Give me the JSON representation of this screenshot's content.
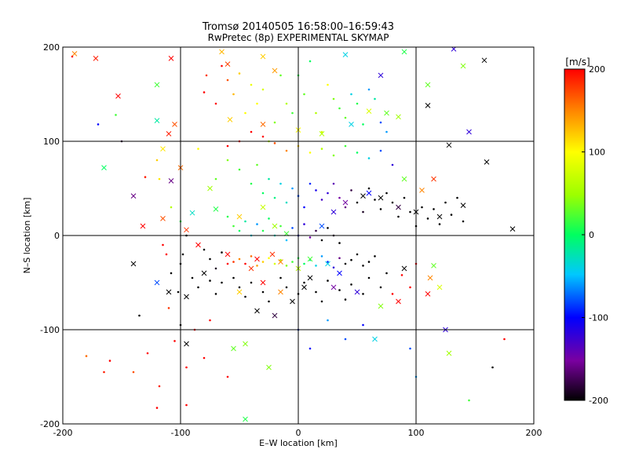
{
  "chart_data": {
    "type": "scatter",
    "title": "Tromsø 20140505 16:58:00–16:59:43",
    "subtitle": "RwPretec (8p) EXPERIMENTAL SKYMAP",
    "xlabel": "E–W location [km]",
    "ylabel": "N–S location [km]",
    "xlim": [
      -200,
      200
    ],
    "ylim": [
      -200,
      200
    ],
    "xticks": [
      "-200",
      "-100",
      "0",
      "100",
      "200"
    ],
    "yticks": [
      "-200",
      "-100",
      "0",
      "100",
      "200"
    ],
    "grid": true,
    "colorbar": {
      "unit": "[m/s]",
      "range": [
        -200,
        200
      ],
      "ticks": [
        "-200",
        "-100",
        "0",
        "100",
        "200"
      ]
    },
    "markers": [
      "x",
      "dot"
    ],
    "points_x": [
      [
        -190,
        193,
        150
      ],
      [
        -172,
        188,
        190
      ],
      [
        -153,
        148,
        200
      ],
      [
        -120,
        160,
        20
      ],
      [
        -108,
        188,
        200
      ],
      [
        -65,
        195,
        130
      ],
      [
        -60,
        182,
        175
      ],
      [
        -30,
        190,
        120
      ],
      [
        -20,
        175,
        140
      ],
      [
        40,
        192,
        -40
      ],
      [
        70,
        170,
        -120
      ],
      [
        90,
        195,
        10
      ],
      [
        110,
        160,
        30
      ],
      [
        132,
        198,
        -120
      ],
      [
        140,
        180,
        40
      ],
      [
        158,
        186,
        -200
      ],
      [
        -165,
        72,
        0
      ],
      [
        -120,
        122,
        -20
      ],
      [
        -105,
        118,
        170
      ],
      [
        -110,
        108,
        190
      ],
      [
        -115,
        92,
        110
      ],
      [
        -58,
        123,
        120
      ],
      [
        -30,
        118,
        160
      ],
      [
        0,
        112,
        100
      ],
      [
        20,
        108,
        60
      ],
      [
        45,
        118,
        -40
      ],
      [
        60,
        132,
        80
      ],
      [
        75,
        130,
        30
      ],
      [
        85,
        126,
        50
      ],
      [
        110,
        138,
        -200
      ],
      [
        -100,
        72,
        160
      ],
      [
        -75,
        50,
        50
      ],
      [
        -70,
        28,
        10
      ],
      [
        -90,
        24,
        -30
      ],
      [
        -108,
        58,
        -160
      ],
      [
        -140,
        42,
        -160
      ],
      [
        -132,
        10,
        200
      ],
      [
        -115,
        18,
        170
      ],
      [
        -95,
        6,
        180
      ],
      [
        -85,
        -10,
        200
      ],
      [
        -50,
        20,
        120
      ],
      [
        -30,
        30,
        70
      ],
      [
        -20,
        10,
        50
      ],
      [
        -10,
        2,
        20
      ],
      [
        -22,
        -20,
        180
      ],
      [
        -35,
        -25,
        200
      ],
      [
        -40,
        -35,
        180
      ],
      [
        -15,
        -28,
        150
      ],
      [
        0,
        -35,
        60
      ],
      [
        10,
        -25,
        20
      ],
      [
        25,
        -30,
        -40
      ],
      [
        35,
        -40,
        -100
      ],
      [
        20,
        10,
        -80
      ],
      [
        30,
        25,
        -120
      ],
      [
        40,
        35,
        -150
      ],
      [
        55,
        42,
        -200
      ],
      [
        70,
        40,
        -200
      ],
      [
        85,
        30,
        -180
      ],
      [
        100,
        25,
        -200
      ],
      [
        120,
        20,
        -200
      ],
      [
        140,
        32,
        -200
      ],
      [
        182,
        7,
        -200
      ],
      [
        160,
        78,
        -200
      ],
      [
        128,
        96,
        -200
      ],
      [
        145,
        110,
        -120
      ],
      [
        115,
        60,
        180
      ],
      [
        105,
        48,
        150
      ],
      [
        90,
        60,
        30
      ],
      [
        60,
        45,
        -100
      ],
      [
        -60,
        -20,
        200
      ],
      [
        -80,
        -40,
        -200
      ],
      [
        -95,
        -65,
        -200
      ],
      [
        -110,
        -60,
        -200
      ],
      [
        -120,
        -50,
        -80
      ],
      [
        -140,
        -30,
        -200
      ],
      [
        -50,
        -60,
        120
      ],
      [
        -35,
        -80,
        -200
      ],
      [
        -20,
        -85,
        -180
      ],
      [
        -5,
        -70,
        -200
      ],
      [
        10,
        -45,
        -200
      ],
      [
        30,
        -55,
        -150
      ],
      [
        50,
        -60,
        -120
      ],
      [
        70,
        -75,
        40
      ],
      [
        85,
        -70,
        200
      ],
      [
        110,
        -62,
        200
      ],
      [
        112,
        -45,
        150
      ],
      [
        115,
        -32,
        30
      ],
      [
        120,
        -55,
        80
      ],
      [
        90,
        -35,
        -200
      ],
      [
        -55,
        -120,
        30
      ],
      [
        -45,
        -115,
        40
      ],
      [
        -25,
        -140,
        40
      ],
      [
        -45,
        -195,
        10
      ],
      [
        65,
        -110,
        -40
      ],
      [
        125,
        -100,
        -120
      ],
      [
        128,
        -125,
        50
      ],
      [
        -95,
        -115,
        -200
      ],
      [
        -30,
        -50,
        200
      ],
      [
        -15,
        -60,
        150
      ],
      [
        5,
        -55,
        -200
      ]
    ],
    "points_dot": [
      [
        -192,
        190,
        200
      ],
      [
        -180,
        -128,
        160
      ],
      [
        -170,
        118,
        -100
      ],
      [
        -165,
        -145,
        190
      ],
      [
        -160,
        -133,
        200
      ],
      [
        -155,
        128,
        20
      ],
      [
        -150,
        100,
        -180
      ],
      [
        -140,
        -145,
        170
      ],
      [
        -135,
        -85,
        -200
      ],
      [
        -128,
        -125,
        200
      ],
      [
        -120,
        -183,
        200
      ],
      [
        -118,
        -160,
        190
      ],
      [
        -110,
        -77,
        180
      ],
      [
        -100,
        -95,
        -200
      ],
      [
        -95,
        -180,
        200
      ],
      [
        -88,
        -100,
        200
      ],
      [
        -130,
        62,
        190
      ],
      [
        -120,
        80,
        120
      ],
      [
        -118,
        60,
        110
      ],
      [
        -108,
        30,
        60
      ],
      [
        -100,
        15,
        10
      ],
      [
        -95,
        0,
        -200
      ],
      [
        -85,
        92,
        100
      ],
      [
        -80,
        152,
        200
      ],
      [
        -78,
        170,
        180
      ],
      [
        -70,
        140,
        200
      ],
      [
        -65,
        180,
        200
      ],
      [
        -60,
        165,
        170
      ],
      [
        -55,
        150,
        130
      ],
      [
        -50,
        172,
        120
      ],
      [
        -45,
        130,
        100
      ],
      [
        -40,
        160,
        90
      ],
      [
        -35,
        140,
        100
      ],
      [
        -30,
        155,
        80
      ],
      [
        -25,
        100,
        60
      ],
      [
        -20,
        120,
        40
      ],
      [
        -15,
        170,
        30
      ],
      [
        -10,
        140,
        60
      ],
      [
        -5,
        130,
        20
      ],
      [
        0,
        170,
        10
      ],
      [
        5,
        150,
        30
      ],
      [
        10,
        185,
        0
      ],
      [
        15,
        130,
        60
      ],
      [
        20,
        110,
        80
      ],
      [
        25,
        160,
        100
      ],
      [
        30,
        145,
        40
      ],
      [
        35,
        135,
        20
      ],
      [
        40,
        125,
        30
      ],
      [
        45,
        150,
        -40
      ],
      [
        50,
        140,
        10
      ],
      [
        55,
        118,
        0
      ],
      [
        60,
        155,
        -60
      ],
      [
        65,
        145,
        -20
      ],
      [
        70,
        120,
        -80
      ],
      [
        75,
        110,
        -60
      ],
      [
        -70,
        60,
        30
      ],
      [
        -60,
        80,
        40
      ],
      [
        -50,
        70,
        20
      ],
      [
        -40,
        55,
        10
      ],
      [
        -35,
        75,
        30
      ],
      [
        -30,
        45,
        0
      ],
      [
        -25,
        60,
        -20
      ],
      [
        -20,
        40,
        -10
      ],
      [
        -15,
        55,
        -40
      ],
      [
        -10,
        35,
        -30
      ],
      [
        -5,
        50,
        -60
      ],
      [
        0,
        42,
        -80
      ],
      [
        5,
        30,
        -100
      ],
      [
        10,
        55,
        -90
      ],
      [
        15,
        48,
        -110
      ],
      [
        20,
        38,
        -130
      ],
      [
        25,
        45,
        -120
      ],
      [
        30,
        55,
        -140
      ],
      [
        35,
        40,
        -150
      ],
      [
        40,
        30,
        -160
      ],
      [
        45,
        48,
        -180
      ],
      [
        50,
        35,
        -200
      ],
      [
        55,
        25,
        -190
      ],
      [
        60,
        50,
        -200
      ],
      [
        65,
        38,
        -200
      ],
      [
        70,
        28,
        -200
      ],
      [
        75,
        45,
        -200
      ],
      [
        80,
        35,
        -200
      ],
      [
        85,
        20,
        -200
      ],
      [
        90,
        40,
        -200
      ],
      [
        95,
        25,
        -200
      ],
      [
        100,
        10,
        -200
      ],
      [
        105,
        30,
        -200
      ],
      [
        110,
        18,
        -200
      ],
      [
        115,
        28,
        -200
      ],
      [
        120,
        12,
        -200
      ],
      [
        125,
        35,
        -200
      ],
      [
        130,
        22,
        -200
      ],
      [
        135,
        40,
        -200
      ],
      [
        140,
        15,
        -200
      ],
      [
        -60,
        20,
        10
      ],
      [
        -55,
        10,
        20
      ],
      [
        -50,
        5,
        0
      ],
      [
        -45,
        15,
        -20
      ],
      [
        -40,
        0,
        -40
      ],
      [
        -35,
        12,
        -60
      ],
      [
        -30,
        5,
        10
      ],
      [
        -25,
        18,
        0
      ],
      [
        -20,
        0,
        -30
      ],
      [
        -15,
        10,
        20
      ],
      [
        -10,
        -5,
        -50
      ],
      [
        -5,
        8,
        -80
      ],
      [
        0,
        0,
        -100
      ],
      [
        5,
        12,
        -120
      ],
      [
        10,
        -2,
        -150
      ],
      [
        15,
        5,
        -180
      ],
      [
        20,
        -5,
        -200
      ],
      [
        25,
        8,
        -200
      ],
      [
        30,
        0,
        -190
      ],
      [
        35,
        -8,
        -200
      ],
      [
        -80,
        -15,
        -200
      ],
      [
        -75,
        -25,
        -200
      ],
      [
        -70,
        -35,
        -190
      ],
      [
        -65,
        -18,
        -200
      ],
      [
        -60,
        -30,
        200
      ],
      [
        -55,
        -28,
        180
      ],
      [
        -50,
        -25,
        150
      ],
      [
        -45,
        -30,
        200
      ],
      [
        -40,
        -22,
        160
      ],
      [
        -35,
        -32,
        140
      ],
      [
        -30,
        -28,
        120
      ],
      [
        -25,
        -24,
        100
      ],
      [
        -20,
        -30,
        80
      ],
      [
        -15,
        -26,
        60
      ],
      [
        -10,
        -32,
        40
      ],
      [
        -5,
        -28,
        20
      ],
      [
        0,
        -24,
        10
      ],
      [
        5,
        -30,
        0
      ],
      [
        10,
        -26,
        -20
      ],
      [
        15,
        -32,
        -40
      ],
      [
        20,
        -22,
        -60
      ],
      [
        25,
        -28,
        -90
      ],
      [
        30,
        -34,
        -120
      ],
      [
        35,
        -24,
        -160
      ],
      [
        40,
        -30,
        -200
      ],
      [
        45,
        -26,
        -200
      ],
      [
        50,
        -20,
        -200
      ],
      [
        55,
        -32,
        -200
      ],
      [
        60,
        -28,
        -200
      ],
      [
        65,
        -22,
        -200
      ],
      [
        -100,
        -30,
        -200
      ],
      [
        -90,
        -45,
        -200
      ],
      [
        -85,
        -55,
        -200
      ],
      [
        -75,
        -48,
        -200
      ],
      [
        -70,
        -62,
        -200
      ],
      [
        -65,
        -50,
        -200
      ],
      [
        -55,
        -45,
        -200
      ],
      [
        -50,
        -55,
        -200
      ],
      [
        -45,
        -65,
        -200
      ],
      [
        -40,
        -50,
        -200
      ],
      [
        -30,
        -60,
        -200
      ],
      [
        -25,
        -70,
        -200
      ],
      [
        -15,
        -45,
        -200
      ],
      [
        -10,
        -55,
        -200
      ],
      [
        0,
        -62,
        -200
      ],
      [
        5,
        -50,
        -200
      ],
      [
        15,
        -60,
        -200
      ],
      [
        20,
        -70,
        -200
      ],
      [
        25,
        -48,
        -200
      ],
      [
        35,
        -58,
        -200
      ],
      [
        40,
        -68,
        -200
      ],
      [
        45,
        -52,
        -200
      ],
      [
        55,
        -62,
        -200
      ],
      [
        60,
        -45,
        -200
      ],
      [
        70,
        -55,
        -200
      ],
      [
        75,
        -40,
        -200
      ],
      [
        80,
        -62,
        200
      ],
      [
        88,
        -42,
        200
      ],
      [
        95,
        -55,
        200
      ],
      [
        100,
        -30,
        200
      ],
      [
        -115,
        -10,
        200
      ],
      [
        -112,
        -20,
        200
      ],
      [
        -108,
        -40,
        -200
      ],
      [
        -102,
        -60,
        -200
      ],
      [
        -98,
        -20,
        -200
      ],
      [
        -60,
        95,
        200
      ],
      [
        -50,
        100,
        200
      ],
      [
        -40,
        110,
        200
      ],
      [
        -30,
        105,
        200
      ],
      [
        -20,
        98,
        170
      ],
      [
        -10,
        90,
        150
      ],
      [
        0,
        95,
        120
      ],
      [
        10,
        88,
        100
      ],
      [
        20,
        92,
        60
      ],
      [
        30,
        85,
        40
      ],
      [
        40,
        95,
        20
      ],
      [
        50,
        88,
        0
      ],
      [
        60,
        82,
        -40
      ],
      [
        70,
        90,
        -80
      ],
      [
        80,
        75,
        -120
      ],
      [
        0,
        -100,
        -80
      ],
      [
        10,
        -120,
        -100
      ],
      [
        25,
        -90,
        -60
      ],
      [
        40,
        -110,
        -80
      ],
      [
        55,
        -95,
        -100
      ],
      [
        95,
        -120,
        -80
      ],
      [
        100,
        -150,
        -60
      ],
      [
        145,
        -175,
        20
      ],
      [
        165,
        -140,
        -200
      ],
      [
        175,
        -110,
        200
      ],
      [
        -75,
        -90,
        200
      ],
      [
        -80,
        -130,
        200
      ],
      [
        -60,
        -150,
        200
      ],
      [
        -95,
        -140,
        200
      ],
      [
        -105,
        -112,
        200
      ]
    ]
  }
}
